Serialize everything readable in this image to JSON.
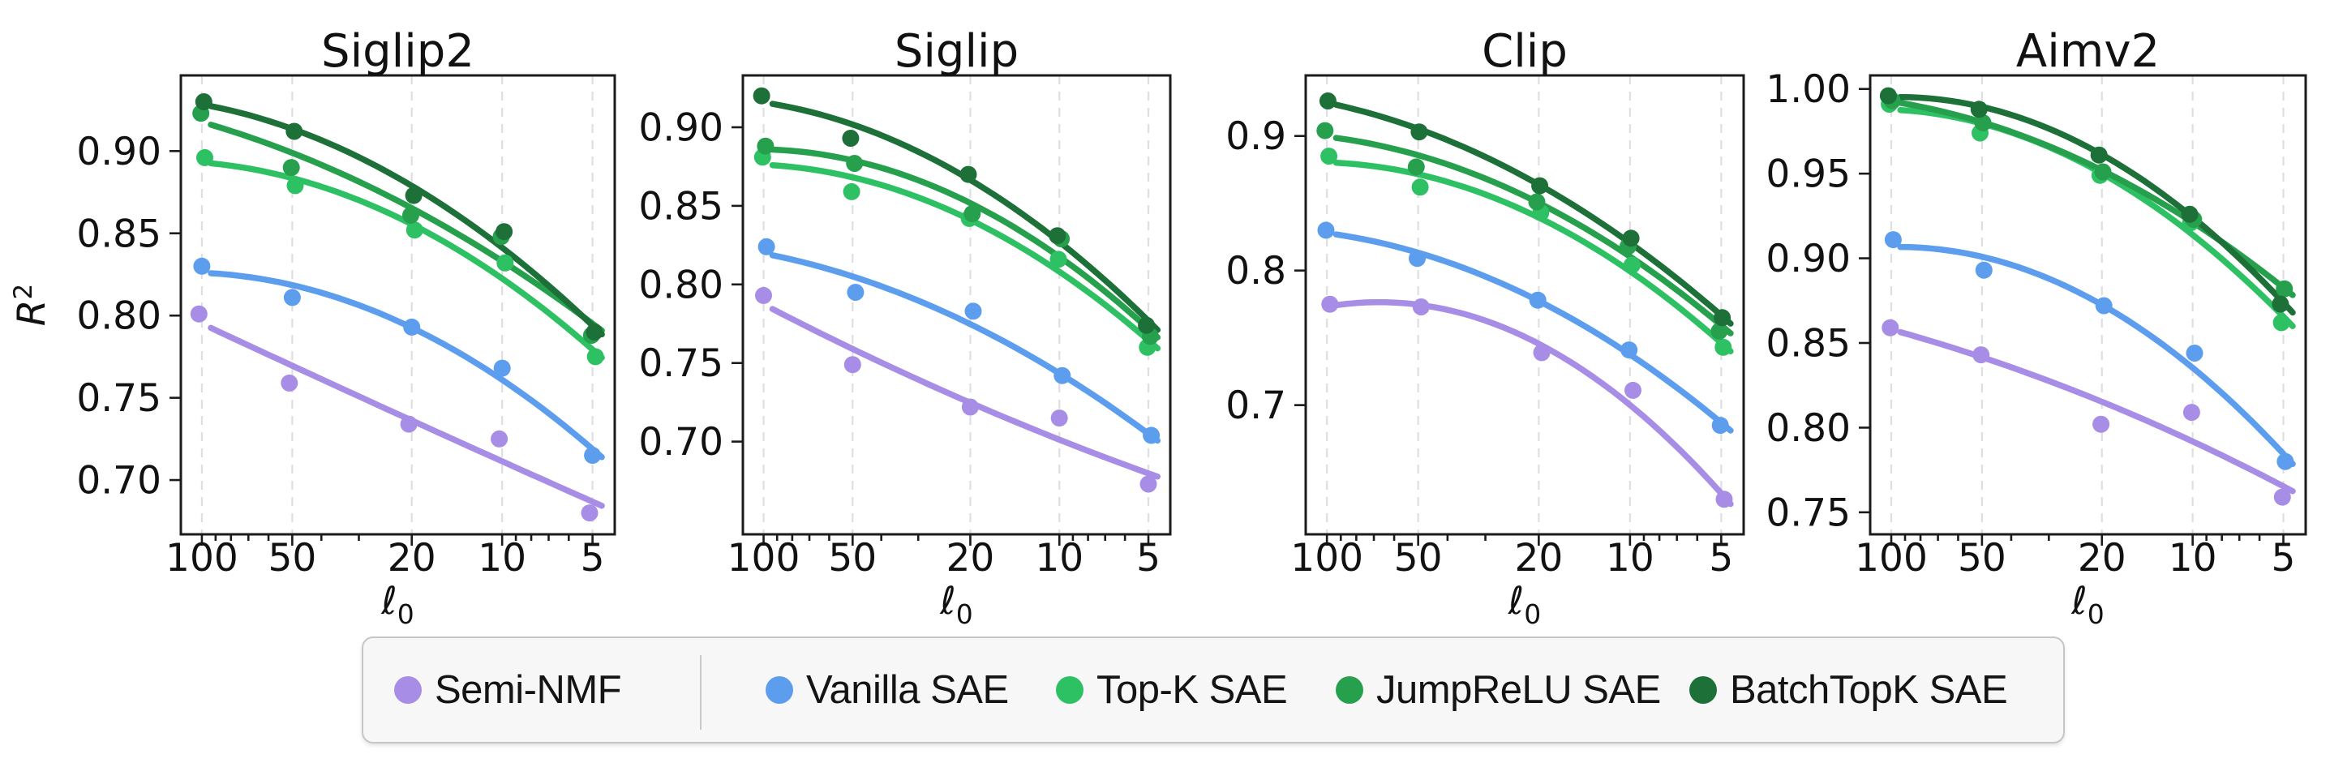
{
  "figure": {
    "background": "#ffffff",
    "axis_color": "#1b1b1b",
    "grid_color": "#dfdfe3",
    "ylabel_base": "R",
    "ylabel_sup": "2",
    "xlabel_char": "ℓ",
    "xlabel_sub": "0"
  },
  "series_colors": {
    "Semi-NMF": "#a78de6",
    "Vanilla SAE": "#5c9dee",
    "Top-K SAE": "#2ec164",
    "JumpReLU SAE": "#27a04e",
    "BatchTopK SAE": "#1c7038"
  },
  "legend": {
    "items": [
      {
        "label": "Semi-NMF"
      },
      {
        "label": "Vanilla SAE"
      },
      {
        "label": "Top-K SAE"
      },
      {
        "label": "JumpReLU SAE"
      },
      {
        "label": "BatchTopK SAE"
      }
    ]
  },
  "chart_data": [
    {
      "type": "scatter",
      "title": "Siglip2",
      "xlabel": "ℓ₀",
      "ylabel": "R²",
      "x_scale": "log10_reversed",
      "xlim": [
        117.5,
        4.22
      ],
      "ylim": [
        0.667,
        0.946
      ],
      "x": [
        100,
        50,
        20,
        10,
        5
      ],
      "xtick_labels": [
        "100",
        "50",
        "20",
        "10",
        "5"
      ],
      "minor_xticks": [
        90,
        80,
        70,
        60,
        40,
        30,
        9,
        8,
        7,
        6
      ],
      "yticks": [
        0.7,
        0.75,
        0.8,
        0.85,
        0.9
      ],
      "ytick_labels": [
        "0.70",
        "0.75",
        "0.80",
        "0.85",
        "0.90"
      ],
      "grid": "x_major_dashed",
      "fit": "quadratic_in_log10x",
      "series": [
        {
          "name": "Semi-NMF",
          "values": [
            0.801,
            0.759,
            0.734,
            0.725,
            0.68
          ]
        },
        {
          "name": "Vanilla SAE",
          "values": [
            0.83,
            0.811,
            0.793,
            0.768,
            0.715
          ]
        },
        {
          "name": "Top-K SAE",
          "values": [
            0.896,
            0.879,
            0.852,
            0.832,
            0.775
          ]
        },
        {
          "name": "JumpReLU SAE",
          "values": [
            0.923,
            0.89,
            0.861,
            0.848,
            0.788
          ]
        },
        {
          "name": "BatchTopK SAE",
          "values": [
            0.93,
            0.912,
            0.873,
            0.851,
            0.79
          ]
        }
      ]
    },
    {
      "type": "scatter",
      "title": "Siglip",
      "xlabel": "ℓ₀",
      "ylabel": "R²",
      "x_scale": "log10_reversed",
      "xlim": [
        117.5,
        4.22
      ],
      "ylim": [
        0.641,
        0.933
      ],
      "x": [
        100,
        50,
        20,
        10,
        5
      ],
      "xtick_labels": [
        "100",
        "50",
        "20",
        "10",
        "5"
      ],
      "minor_xticks": [
        90,
        80,
        70,
        60,
        40,
        30,
        9,
        8,
        7,
        6
      ],
      "yticks": [
        0.7,
        0.75,
        0.8,
        0.85,
        0.9
      ],
      "ytick_labels": [
        "0.70",
        "0.75",
        "0.80",
        "0.85",
        "0.90"
      ],
      "grid": "x_major_dashed",
      "fit": "quadratic_in_log10x",
      "series": [
        {
          "name": "Semi-NMF",
          "values": [
            0.793,
            0.749,
            0.722,
            0.715,
            0.673
          ]
        },
        {
          "name": "Vanilla SAE",
          "values": [
            0.824,
            0.795,
            0.783,
            0.742,
            0.704
          ]
        },
        {
          "name": "Top-K SAE",
          "values": [
            0.881,
            0.859,
            0.842,
            0.816,
            0.76
          ]
        },
        {
          "name": "JumpReLU SAE",
          "values": [
            0.888,
            0.877,
            0.845,
            0.829,
            0.767
          ]
        },
        {
          "name": "BatchTopK SAE",
          "values": [
            0.92,
            0.893,
            0.87,
            0.831,
            0.774
          ]
        }
      ]
    },
    {
      "type": "scatter",
      "title": "Clip",
      "xlabel": "ℓ₀",
      "ylabel": "R²",
      "x_scale": "log10_reversed",
      "xlim": [
        117.5,
        4.22
      ],
      "ylim": [
        0.604,
        0.945
      ],
      "x": [
        100,
        50,
        20,
        10,
        5
      ],
      "xtick_labels": [
        "100",
        "50",
        "20",
        "10",
        "5"
      ],
      "minor_xticks": [
        90,
        80,
        70,
        60,
        40,
        30,
        9,
        8,
        7,
        6
      ],
      "yticks": [
        0.7,
        0.8,
        0.9
      ],
      "ytick_labels": [
        "0.7",
        "0.8",
        "0.9"
      ],
      "grid": "x_major_dashed",
      "fit": "quadratic_in_log10x",
      "series": [
        {
          "name": "Semi-NMF",
          "values": [
            0.775,
            0.773,
            0.739,
            0.711,
            0.63
          ]
        },
        {
          "name": "Vanilla SAE",
          "values": [
            0.83,
            0.809,
            0.778,
            0.741,
            0.685
          ]
        },
        {
          "name": "Top-K SAE",
          "values": [
            0.885,
            0.862,
            0.843,
            0.804,
            0.743
          ]
        },
        {
          "name": "JumpReLU SAE",
          "values": [
            0.904,
            0.877,
            0.851,
            0.818,
            0.755
          ]
        },
        {
          "name": "BatchTopK SAE",
          "values": [
            0.926,
            0.903,
            0.863,
            0.824,
            0.765
          ]
        }
      ]
    },
    {
      "type": "scatter",
      "title": "Aimv2",
      "xlabel": "ℓ₀",
      "ylabel": "R²",
      "x_scale": "log10_reversed",
      "xlim": [
        117.5,
        4.22
      ],
      "ylim": [
        0.737,
        1.008
      ],
      "x": [
        100,
        50,
        20,
        10,
        5
      ],
      "xtick_labels": [
        "100",
        "50",
        "20",
        "10",
        "5"
      ],
      "minor_xticks": [
        90,
        80,
        70,
        60,
        40,
        30,
        9,
        8,
        7,
        6
      ],
      "yticks": [
        0.75,
        0.8,
        0.85,
        0.9,
        0.95,
        1.0
      ],
      "ytick_labels": [
        "0.75",
        "0.80",
        "0.85",
        "0.90",
        "0.95",
        "1.00"
      ],
      "grid": "x_major_dashed",
      "fit": "quadratic_in_log10x",
      "series": [
        {
          "name": "Semi-NMF",
          "values": [
            0.859,
            0.843,
            0.802,
            0.809,
            0.759
          ]
        },
        {
          "name": "Vanilla SAE",
          "values": [
            0.911,
            0.893,
            0.872,
            0.844,
            0.78
          ]
        },
        {
          "name": "Top-K SAE",
          "values": [
            0.991,
            0.974,
            0.949,
            0.921,
            0.862
          ]
        },
        {
          "name": "JumpReLU SAE",
          "values": [
            0.993,
            0.98,
            0.951,
            0.923,
            0.882
          ]
        },
        {
          "name": "BatchTopK SAE",
          "values": [
            0.996,
            0.988,
            0.961,
            0.926,
            0.873
          ]
        }
      ]
    }
  ]
}
